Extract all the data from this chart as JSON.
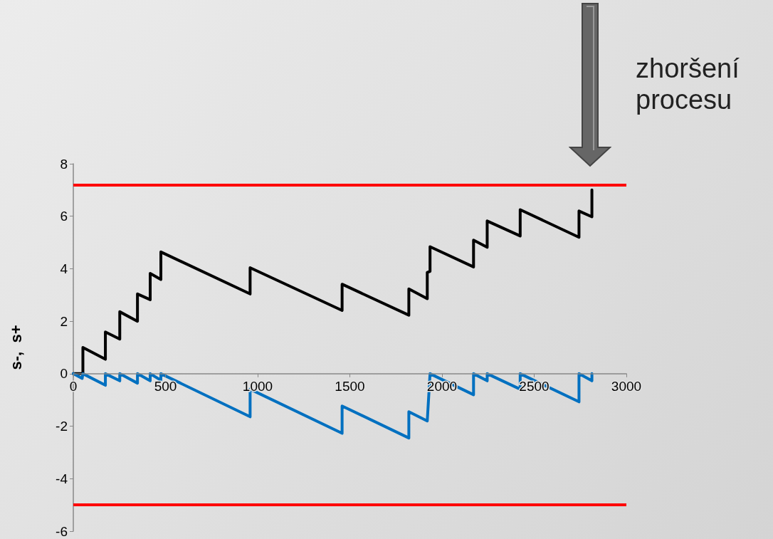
{
  "chart_data": {
    "type": "line",
    "ylabel": "s-,  s+",
    "annotations": [
      "zhoršení procesu"
    ],
    "xlim": [
      0,
      3000
    ],
    "xticks": [
      0,
      500,
      1000,
      1500,
      2000,
      2500,
      3000
    ],
    "ylim": [
      -6,
      8
    ],
    "yticks": [
      -6,
      -4,
      -2,
      0,
      2,
      4,
      6,
      8
    ],
    "grid": false,
    "marker": "none",
    "line_style": "solid",
    "series": [
      {
        "color": "#000000",
        "x": [
          0,
          52,
          52,
          174,
          174,
          252,
          252,
          348,
          348,
          417,
          417,
          475,
          475,
          959,
          959,
          1458,
          1458,
          1820,
          1820,
          1920,
          1920,
          1935,
          1935,
          2171,
          2171,
          2245,
          2245,
          2424,
          2424,
          2743,
          2743,
          2813,
          2813
        ],
        "values": [
          0,
          0,
          1.0,
          0.55,
          1.59,
          1.32,
          2.36,
          2.0,
          3.04,
          2.82,
          3.82,
          3.59,
          4.64,
          3.04,
          4.04,
          2.41,
          3.41,
          2.23,
          3.23,
          2.86,
          3.86,
          3.9,
          4.84,
          4.07,
          5.09,
          4.82,
          5.82,
          5.25,
          6.25,
          5.2,
          6.2,
          5.98,
          7.0
        ]
      },
      {
        "color": "#0070c0",
        "x": [
          0,
          48,
          52,
          174,
          174,
          252,
          252,
          348,
          348,
          417,
          417,
          475,
          475,
          959,
          959,
          1458,
          1458,
          1820,
          1820,
          1920,
          1935,
          2171,
          2171,
          2245,
          2245,
          2424,
          2424,
          2743,
          2743,
          2813,
          2813
        ],
        "values": [
          0,
          -0.18,
          0,
          -0.44,
          0,
          -0.27,
          0,
          -0.36,
          0,
          -0.27,
          0,
          -0.25,
          0,
          -1.64,
          -0.59,
          -2.27,
          -1.23,
          -2.45,
          -1.45,
          -1.8,
          0,
          -0.8,
          0,
          -0.27,
          0,
          -0.59,
          0,
          -1.07,
          0,
          -0.27,
          0
        ]
      }
    ],
    "ref_lines": [
      {
        "axis": "y",
        "value": 7.2,
        "color": "#ff0000",
        "line_style": "solid"
      },
      {
        "axis": "y",
        "value": -5,
        "color": "#ff0000",
        "line_style": "solid"
      }
    ]
  }
}
